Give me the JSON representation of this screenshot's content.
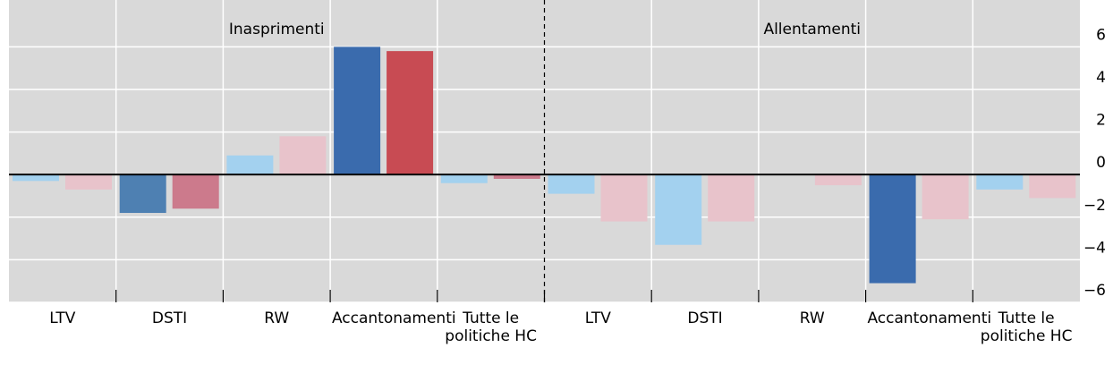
{
  "chart_data": {
    "type": "bar",
    "section_labels": [
      "Inasprimenti",
      "Allentamenti"
    ],
    "categories": [
      "LTV",
      "DSTI",
      "RW",
      "Accantonamenti",
      "Tutte le politiche HC",
      "LTV",
      "DSTI",
      "RW",
      "Accantonamenti",
      "Tutte le politiche HC"
    ],
    "series": [
      {
        "colors": [
          "#a3d1ef",
          "#4e80b2",
          "#a3d1ef",
          "#3a6bad",
          "#a3d1ef",
          "#a3d1ef",
          "#a3d1ef",
          "#a3d1ef",
          "#3a6bad",
          "#a3d1ef"
        ],
        "values": [
          -0.3,
          -1.8,
          0.9,
          6.0,
          -0.4,
          -0.9,
          -3.3,
          null,
          -5.1,
          -0.7
        ]
      },
      {
        "colors": [
          "#e8c3cb",
          "#cc7a8c",
          "#e8c3cb",
          "#c84b53",
          "#cc7a8c",
          "#e8c3cb",
          "#e8c3cb",
          "#e8c3cb",
          "#e8c3cb",
          "#e8c3cb"
        ],
        "values": [
          -0.7,
          -1.6,
          1.8,
          5.8,
          -0.2,
          -2.2,
          -2.2,
          -0.5,
          -2.1,
          -1.1
        ]
      }
    ],
    "ylim": [
      -6,
      8.2
    ],
    "yticks": [
      {
        "value": -6,
        "label": "−6"
      },
      {
        "value": -4,
        "label": "−4"
      },
      {
        "value": -2,
        "label": "−2"
      },
      0,
      2,
      4,
      6
    ],
    "grid": true
  }
}
